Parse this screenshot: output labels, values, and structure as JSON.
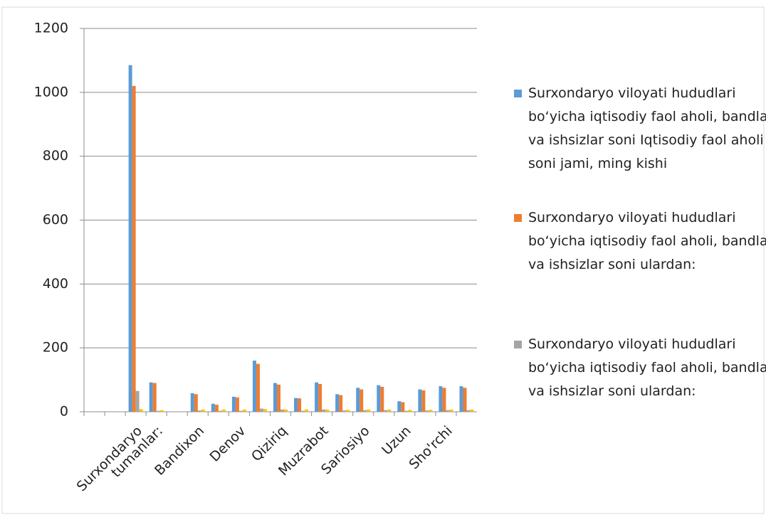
{
  "chart_data": {
    "type": "bar",
    "categories": [
      null,
      null,
      "Surxondaryo",
      "tumanlar:",
      null,
      "Bandixon",
      null,
      "Denov",
      null,
      "Qiziriq",
      null,
      "Muzrabot",
      null,
      "Sariosiyo",
      null,
      "Uzun",
      null,
      "Sho'rchi",
      null
    ],
    "series": [
      {
        "name": "Surxondaryo viloyati hududlari bo‘yicha iqtisodiy faol aholi, bandlar va ishsizlar soni Iqtisodiy faol aholi soni jami, ming kishi",
        "color": "#5b9bd5",
        "values": [
          null,
          null,
          1085,
          92,
          null,
          58,
          25,
          47,
          160,
          90,
          43,
          92,
          55,
          75,
          83,
          33,
          70,
          80,
          80
        ]
      },
      {
        "name": "Surxondaryo viloyati hududlari bo‘yicha iqtisodiy faol aholi, bandlar va ishsizlar soni ulardan:",
        "color": "#ed7d31",
        "values": [
          null,
          null,
          1020,
          90,
          null,
          55,
          22,
          45,
          150,
          85,
          42,
          87,
          52,
          70,
          78,
          30,
          67,
          75,
          75
        ]
      },
      {
        "name": "Surxondaryo viloyati hududlari bo‘yicha iqtisodiy faol aholi, bandlar va ishsizlar soni ulardan:",
        "color": "#a5a5a5",
        "values": [
          null,
          null,
          65,
          3,
          null,
          4,
          3,
          3,
          10,
          7,
          3,
          7,
          4,
          5,
          5,
          3,
          4,
          5,
          5
        ]
      },
      {
        "color": "#ffc000",
        "values": [
          null,
          null,
          8,
          5,
          null,
          7,
          7,
          7,
          8,
          7,
          7,
          7,
          6,
          7,
          7,
          6,
          6,
          7,
          7
        ]
      }
    ],
    "ylim": [
      0,
      1200
    ],
    "yticks": [
      0,
      200,
      400,
      600,
      800,
      1000,
      1200
    ],
    "grid": true,
    "legend": "right"
  }
}
